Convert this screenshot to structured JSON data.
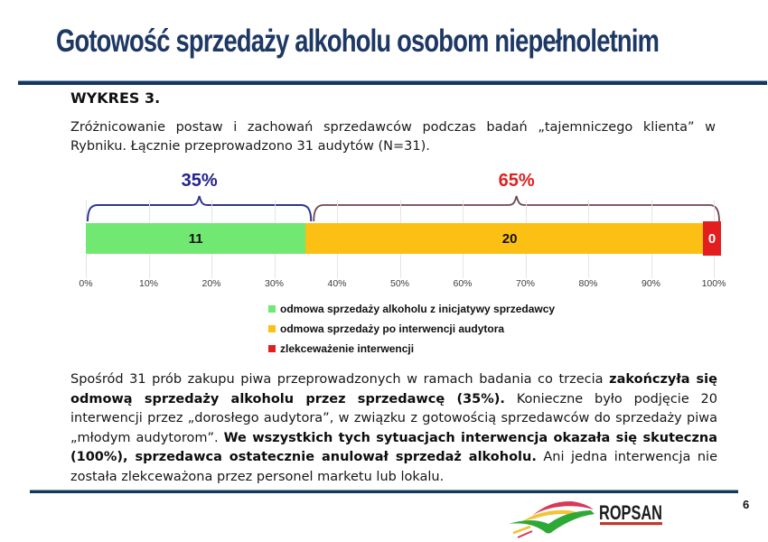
{
  "page": {
    "title": "Gotowość sprzedaży alkoholu osobom niepełnoletnim"
  },
  "figure": {
    "heading": "WYKRES 3.",
    "intro": "Zróżnicowanie postaw i zachowań sprzedawców podczas badań „tajemniczego klienta” w Rybniku. Łącznie przeprowadzono 31 audytów (N=31)."
  },
  "chart_data": {
    "type": "bar",
    "subtype": "horizontal-stacked",
    "n": 31,
    "xlim": [
      0,
      100
    ],
    "x_ticks": [
      "0%",
      "10%",
      "20%",
      "30%",
      "40%",
      "50%",
      "60%",
      "70%",
      "80%",
      "90%",
      "100%"
    ],
    "grid": true,
    "legend_position": "bottom-center",
    "series": [
      {
        "name": "odmowa sprzedaży alkoholu z inicjatywy sprzedawcy",
        "value": 11,
        "percent": 35,
        "color": "#71E871"
      },
      {
        "name": "odmowa sprzedaży po interwencji audytora",
        "value": 20,
        "percent": 65,
        "color": "#FCBF13"
      },
      {
        "name": "zlekceważenie interwencji",
        "value": 0,
        "percent": 0,
        "color": "#E31E1E"
      }
    ],
    "brackets": [
      {
        "label": "35%",
        "from": 0,
        "to": 35,
        "brace_color": "#2F3590",
        "label_color": "#23238F"
      },
      {
        "label": "65%",
        "from": 35,
        "to": 100,
        "brace_color": "#6E4652",
        "label_color": "#E02020"
      }
    ]
  },
  "body": {
    "segments": [
      {
        "text": "Spośród 31 prób zakupu piwa przeprowadzonych w ramach badania co trzecia ",
        "bold": false
      },
      {
        "text": "zakończyła się odmową sprzedaży alkoholu przez sprzedawcę (35%).",
        "bold": true
      },
      {
        "text": " Konieczne było podjęcie 20 interwencji przez „dorosłego audytora”, w związku z gotowością sprzedawców do sprzedaży piwa „młodym audytorom”. ",
        "bold": false
      },
      {
        "text": "We wszystkich tych sytuacjach interwencja okazała się skuteczna (100%), sprzedawca ostatecznie anulował sprzedaż alkoholu.",
        "bold": true
      },
      {
        "text": " Ani jedna interwencja nie została zlekceważona przez personel marketu lub lokalu.",
        "bold": false
      }
    ]
  },
  "footer": {
    "logo_text": "ROPSAN",
    "page_number": "6"
  }
}
